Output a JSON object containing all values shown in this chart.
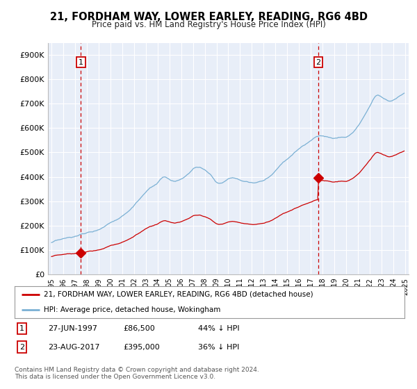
{
  "title": "21, FORDHAM WAY, LOWER EARLEY, READING, RG6 4BD",
  "subtitle": "Price paid vs. HM Land Registry's House Price Index (HPI)",
  "ylim": [
    0,
    950000
  ],
  "yticks": [
    0,
    100000,
    200000,
    300000,
    400000,
    500000,
    600000,
    700000,
    800000,
    900000
  ],
  "ytick_labels": [
    "£0",
    "£100K",
    "£200K",
    "£300K",
    "£400K",
    "£500K",
    "£600K",
    "£700K",
    "£800K",
    "£900K"
  ],
  "sale1_year": 1997.49,
  "sale1_price": 86500,
  "sale2_year": 2017.64,
  "sale2_price": 395000,
  "hpi_color": "#7ab0d4",
  "price_color": "#cc0000",
  "marker_color": "#cc0000",
  "bg_color": "#e8eef8",
  "grid_color": "#ffffff",
  "legend1": "21, FORDHAM WAY, LOWER EARLEY, READING, RG6 4BD (detached house)",
  "legend2": "HPI: Average price, detached house, Wokingham",
  "ann1": [
    "1",
    "27-JUN-1997",
    "£86,500",
    "44% ↓ HPI"
  ],
  "ann2": [
    "2",
    "23-AUG-2017",
    "£395,000",
    "36% ↓ HPI"
  ],
  "footer": "Contains HM Land Registry data © Crown copyright and database right 2024.\nThis data is licensed under the Open Government Licence v3.0.",
  "xmin": 1994.7,
  "xmax": 2025.3
}
